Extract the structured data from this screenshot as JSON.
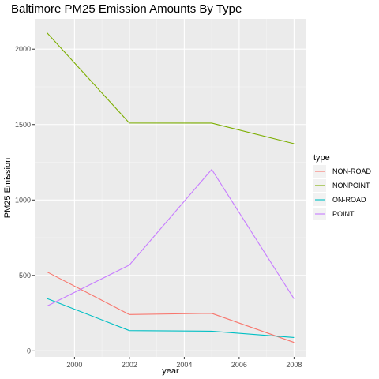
{
  "chart_data": {
    "type": "line",
    "title": "Baltimore PM25 Emission Amounts By Type",
    "xlabel": "year",
    "ylabel": "PM25 Emission",
    "x": [
      1999,
      2002,
      2005,
      2008
    ],
    "xlim": [
      1998.55,
      2008.45
    ],
    "ylim": [
      -40,
      2200
    ],
    "xticks": [
      2000,
      2002,
      2004,
      2006,
      2008
    ],
    "yticks": [
      0,
      500,
      1000,
      1500,
      2000
    ],
    "grid": true,
    "legend": {
      "title": "type",
      "placement": "right"
    },
    "series": [
      {
        "name": "NON-ROAD",
        "color": "#f8766d",
        "values": [
          522.9,
          240.8,
          248.9,
          55.8
        ]
      },
      {
        "name": "NONPOINT",
        "color": "#7cae00",
        "values": [
          2107.6,
          1510.0,
          1509.5,
          1373.2
        ]
      },
      {
        "name": "ON-ROAD",
        "color": "#00bfc4",
        "values": [
          346.8,
          134.3,
          130.4,
          88.3
        ]
      },
      {
        "name": "POINT",
        "color": "#c77cff",
        "values": [
          296.8,
          569.3,
          1202.5,
          344.98
        ]
      }
    ]
  }
}
